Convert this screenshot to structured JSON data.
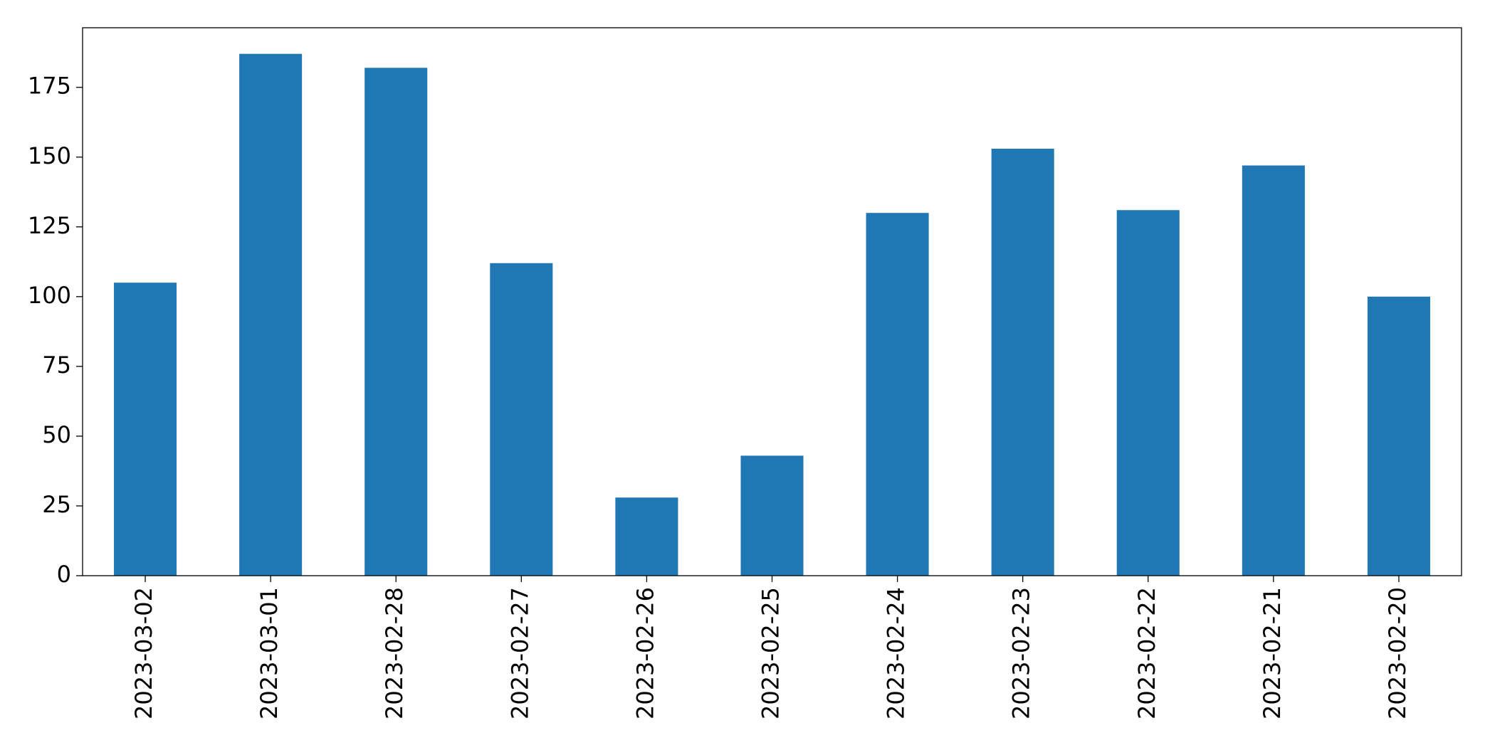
{
  "chart_data": {
    "type": "bar",
    "categories": [
      "2023-03-02",
      "2023-03-01",
      "2023-02-28",
      "2023-02-27",
      "2023-02-26",
      "2023-02-25",
      "2023-02-24",
      "2023-02-23",
      "2023-02-22",
      "2023-02-21",
      "2023-02-20"
    ],
    "values": [
      105,
      187,
      182,
      112,
      28,
      43,
      130,
      153,
      131,
      147,
      100
    ],
    "color": "#1f77b4",
    "ylim": [
      0,
      196.35
    ],
    "yticks": [
      0,
      25,
      50,
      75,
      100,
      125,
      150,
      175
    ],
    "grid": false
  }
}
